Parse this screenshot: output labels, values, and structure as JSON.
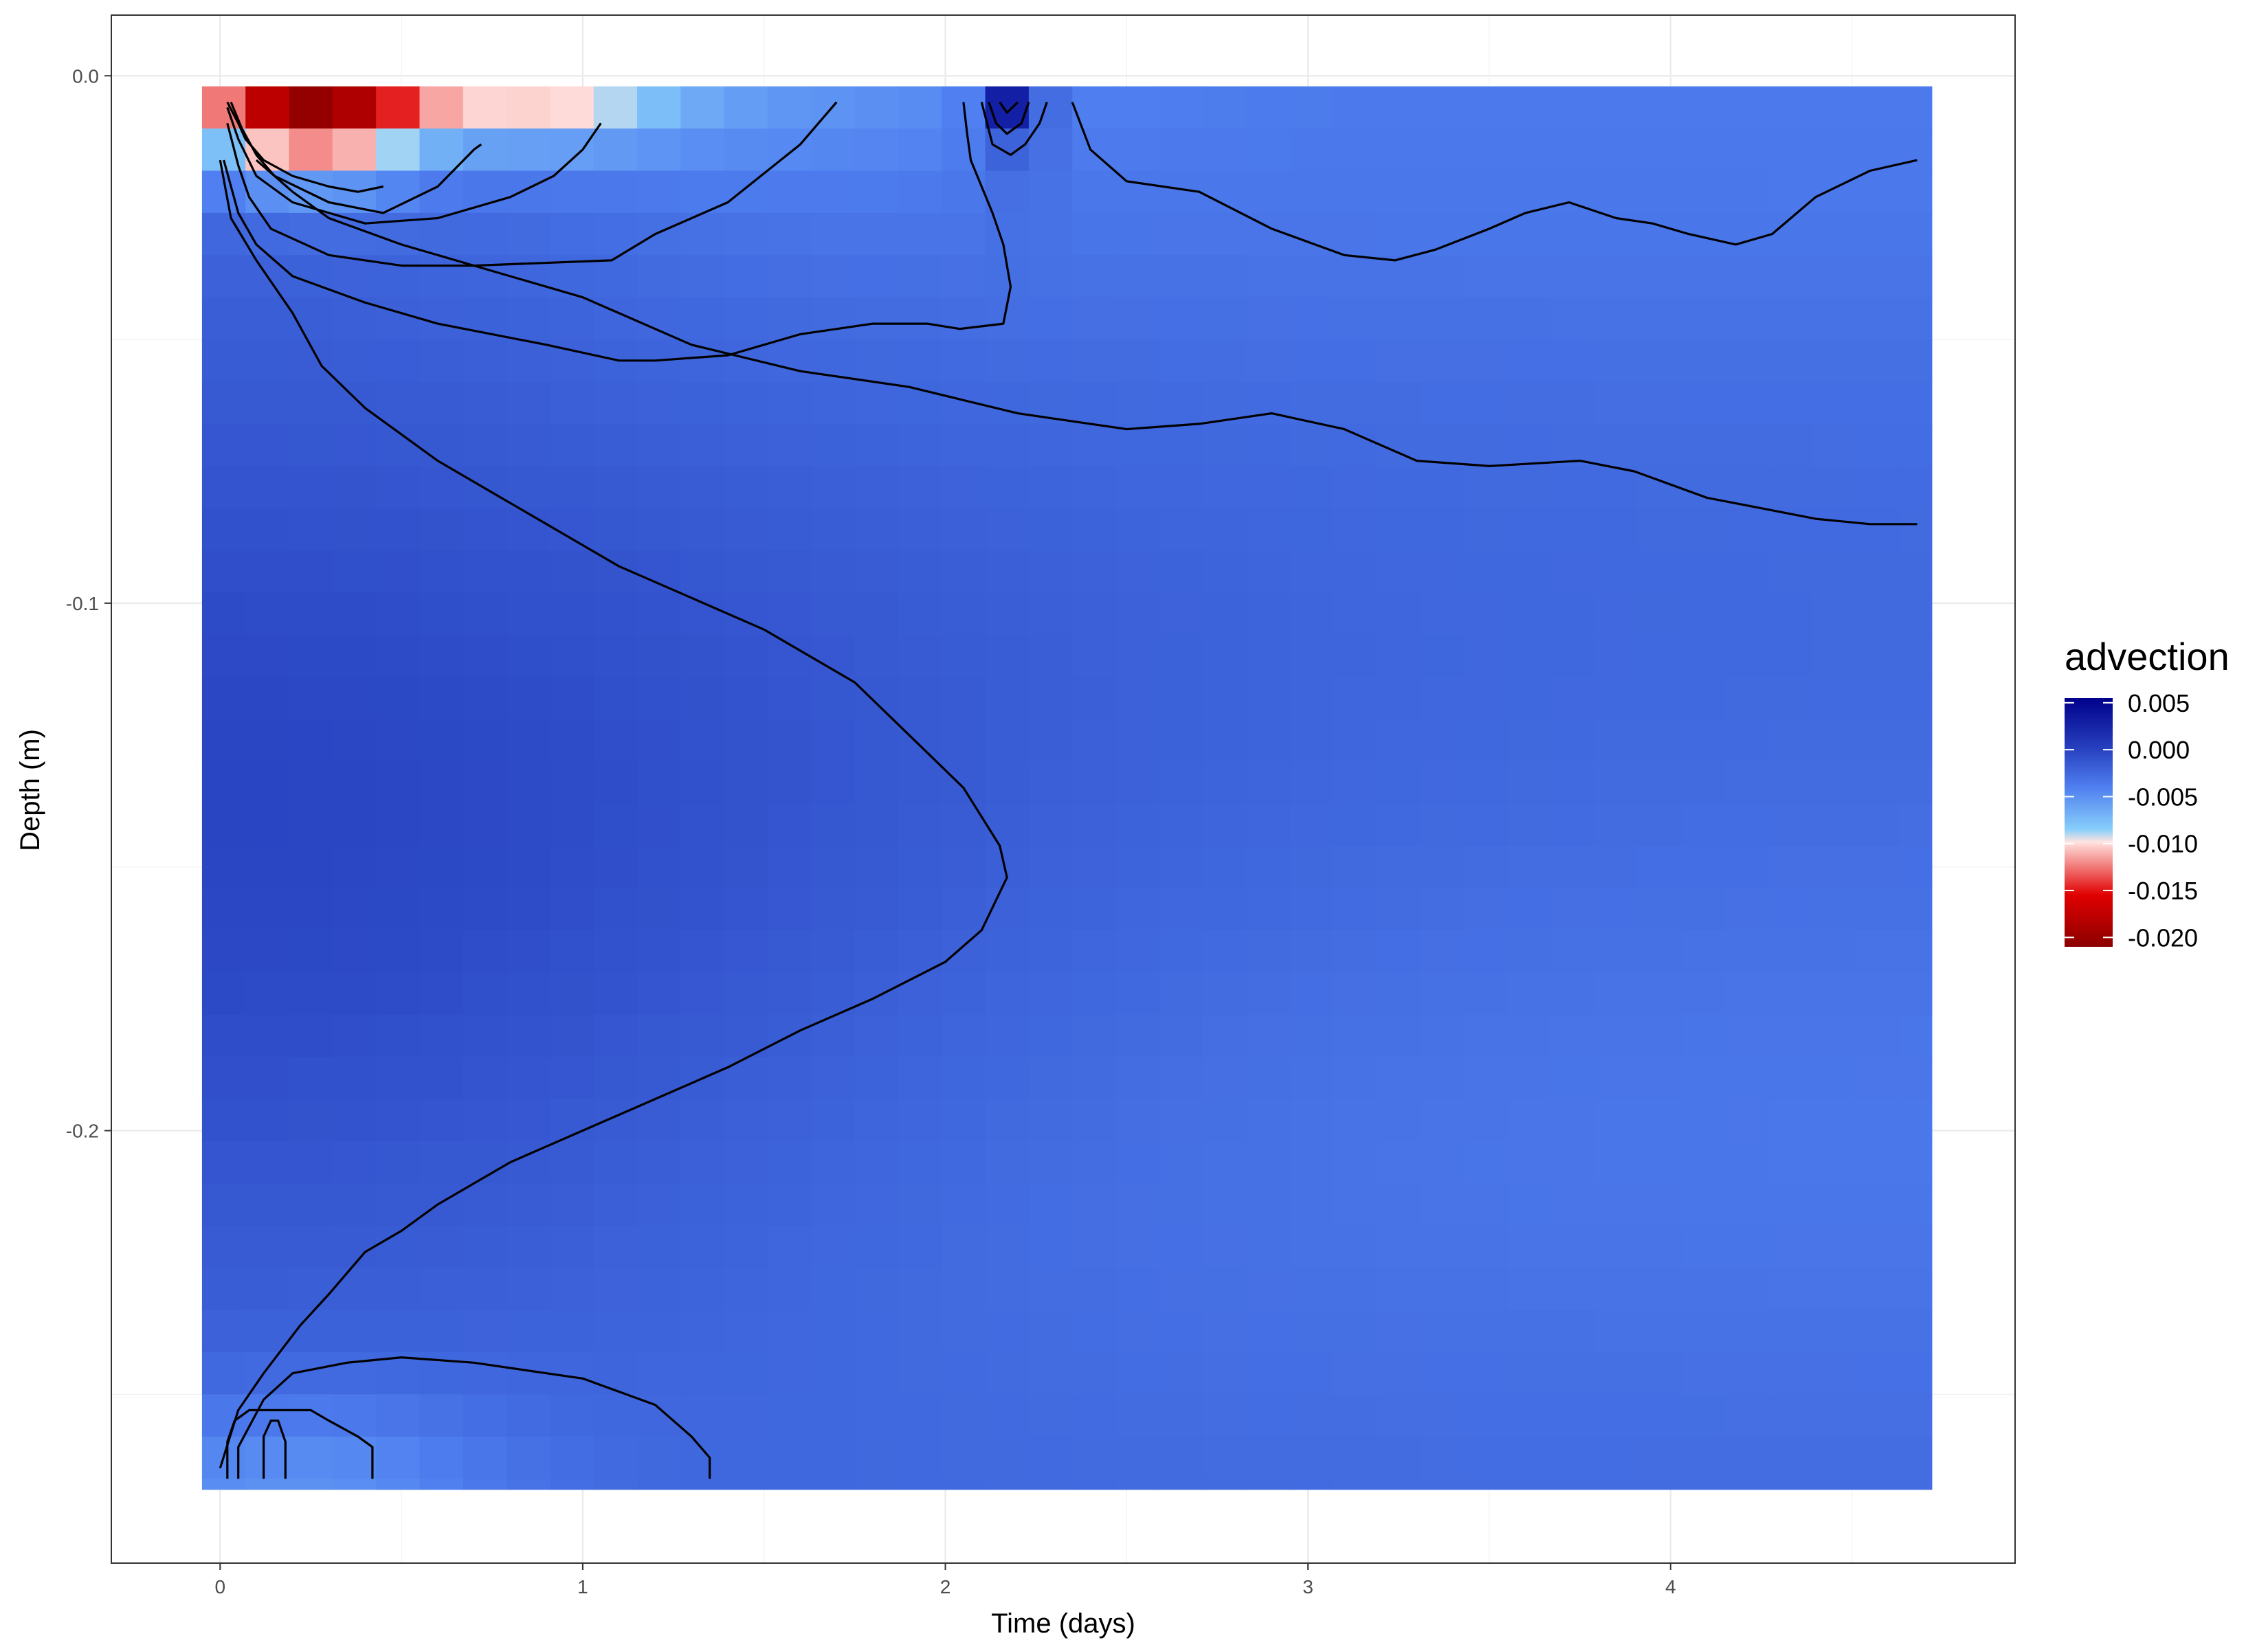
{
  "chart_data": {
    "type": "heatmap",
    "title": "",
    "xlabel": "Time (days)",
    "ylabel": "Depth (m)",
    "xlim": [
      -0.3,
      4.95
    ],
    "ylim": [
      -0.282,
      0.0115
    ],
    "x_range": [
      -0.05,
      4.72
    ],
    "y_range": [
      -0.268,
      -0.002
    ],
    "x_ticks": [
      0,
      1,
      2,
      3,
      4
    ],
    "x_tick_labels": [
      "0",
      "1",
      "2",
      "3",
      "4"
    ],
    "y_ticks": [
      0.0,
      -0.1,
      -0.2
    ],
    "y_tick_labels": [
      "0.0",
      "-0.1",
      "-0.2"
    ],
    "grid": true,
    "colorbar": {
      "title": "advection",
      "ticks": [
        0.005,
        0.0,
        -0.005,
        -0.01,
        -0.015,
        -0.02
      ],
      "tick_labels": [
        "0.005",
        "0.000",
        "-0.005",
        "-0.010",
        "-0.015",
        "-0.020"
      ],
      "range": [
        -0.021,
        0.0055
      ],
      "colors": [
        {
          "value": -0.021,
          "color": "#8b0000"
        },
        {
          "value": -0.0155,
          "color": "#e00000"
        },
        {
          "value": -0.0098,
          "color": "#ffe4e1"
        },
        {
          "value": -0.0085,
          "color": "#87cefa"
        },
        {
          "value": -0.004,
          "color": "#4f7ff0"
        },
        {
          "value": 0.0,
          "color": "#2842c0"
        },
        {
          "value": 0.0055,
          "color": "#00008b"
        }
      ],
      "placement": "right"
    },
    "contours": [
      [
        [
          0.02,
          -0.005
        ],
        [
          0.05,
          -0.009
        ],
        [
          0.07,
          -0.012
        ],
        [
          0.12,
          -0.016
        ],
        [
          0.2,
          -0.019
        ],
        [
          0.3,
          -0.021
        ],
        [
          0.38,
          -0.022
        ],
        [
          0.45,
          -0.021
        ]
      ],
      [
        [
          0.03,
          -0.005
        ],
        [
          0.06,
          -0.01
        ],
        [
          0.1,
          -0.015
        ],
        [
          0.15,
          -0.019
        ],
        [
          0.3,
          -0.024
        ],
        [
          0.45,
          -0.026
        ],
        [
          0.6,
          -0.021
        ],
        [
          0.7,
          -0.014
        ],
        [
          0.72,
          -0.013
        ]
      ],
      [
        [
          0.02,
          -0.006
        ],
        [
          0.05,
          -0.012
        ],
        [
          0.1,
          -0.019
        ],
        [
          0.2,
          -0.024
        ],
        [
          0.4,
          -0.028
        ],
        [
          0.6,
          -0.027
        ],
        [
          0.8,
          -0.023
        ],
        [
          0.92,
          -0.019
        ],
        [
          1.0,
          -0.014
        ],
        [
          1.05,
          -0.009
        ]
      ],
      [
        [
          0.02,
          -0.009
        ],
        [
          0.05,
          -0.017
        ],
        [
          0.08,
          -0.023
        ],
        [
          0.14,
          -0.029
        ],
        [
          0.3,
          -0.034
        ],
        [
          0.5,
          -0.036
        ],
        [
          0.7,
          -0.036
        ],
        [
          1.08,
          -0.035
        ],
        [
          1.2,
          -0.03
        ],
        [
          1.4,
          -0.024
        ],
        [
          1.6,
          -0.013
        ],
        [
          1.7,
          -0.005
        ]
      ],
      [
        [
          0.01,
          -0.016
        ],
        [
          0.05,
          -0.026
        ],
        [
          0.1,
          -0.032
        ],
        [
          0.2,
          -0.038
        ],
        [
          0.4,
          -0.043
        ],
        [
          0.6,
          -0.047
        ],
        [
          0.9,
          -0.051
        ],
        [
          1.1,
          -0.054
        ],
        [
          1.2,
          -0.054
        ],
        [
          1.4,
          -0.053
        ],
        [
          1.6,
          -0.049
        ],
        [
          1.8,
          -0.047
        ],
        [
          1.95,
          -0.047
        ],
        [
          2.04,
          -0.048
        ],
        [
          2.16,
          -0.047
        ],
        [
          2.18,
          -0.04
        ],
        [
          2.16,
          -0.032
        ],
        [
          2.13,
          -0.026
        ],
        [
          2.1,
          -0.021
        ],
        [
          2.07,
          -0.016
        ],
        [
          2.06,
          -0.011
        ],
        [
          2.05,
          -0.005
        ]
      ],
      [
        [
          2.15,
          -0.005
        ],
        [
          2.17,
          -0.007
        ],
        [
          2.2,
          -0.005
        ]
      ],
      [
        [
          2.12,
          -0.005
        ],
        [
          2.14,
          -0.009
        ],
        [
          2.17,
          -0.011
        ],
        [
          2.21,
          -0.009
        ],
        [
          2.23,
          -0.005
        ]
      ],
      [
        [
          2.1,
          -0.005
        ],
        [
          2.13,
          -0.013
        ],
        [
          2.18,
          -0.015
        ],
        [
          2.22,
          -0.013
        ],
        [
          2.26,
          -0.009
        ],
        [
          2.28,
          -0.005
        ]
      ],
      [
        [
          2.35,
          -0.005
        ],
        [
          2.4,
          -0.014
        ],
        [
          2.5,
          -0.02
        ],
        [
          2.7,
          -0.022
        ],
        [
          2.9,
          -0.029
        ],
        [
          3.1,
          -0.034
        ],
        [
          3.24,
          -0.035
        ],
        [
          3.35,
          -0.033
        ],
        [
          3.5,
          -0.029
        ],
        [
          3.6,
          -0.026
        ],
        [
          3.72,
          -0.024
        ],
        [
          3.85,
          -0.027
        ],
        [
          3.95,
          -0.028
        ],
        [
          4.05,
          -0.03
        ],
        [
          4.18,
          -0.032
        ],
        [
          4.28,
          -0.03
        ],
        [
          4.4,
          -0.023
        ],
        [
          4.55,
          -0.018
        ],
        [
          4.68,
          -0.016
        ]
      ],
      [
        [
          0.0,
          -0.016
        ],
        [
          0.03,
          -0.027
        ],
        [
          0.1,
          -0.035
        ],
        [
          0.2,
          -0.045
        ],
        [
          0.28,
          -0.055
        ],
        [
          0.4,
          -0.063
        ],
        [
          0.6,
          -0.073
        ],
        [
          0.8,
          -0.081
        ],
        [
          0.95,
          -0.087
        ],
        [
          1.1,
          -0.093
        ],
        [
          1.3,
          -0.099
        ],
        [
          1.5,
          -0.105
        ],
        [
          1.75,
          -0.115
        ],
        [
          1.9,
          -0.125
        ],
        [
          2.05,
          -0.135
        ],
        [
          2.15,
          -0.146
        ],
        [
          2.17,
          -0.152
        ],
        [
          2.1,
          -0.162
        ],
        [
          2.0,
          -0.168
        ],
        [
          1.8,
          -0.175
        ],
        [
          1.6,
          -0.181
        ],
        [
          1.4,
          -0.188
        ],
        [
          1.2,
          -0.194
        ],
        [
          1.0,
          -0.2
        ],
        [
          0.8,
          -0.206
        ],
        [
          0.6,
          -0.214
        ],
        [
          0.5,
          -0.219
        ],
        [
          0.4,
          -0.223
        ],
        [
          0.3,
          -0.231
        ],
        [
          0.22,
          -0.237
        ],
        [
          0.12,
          -0.246
        ],
        [
          0.05,
          -0.253
        ],
        [
          0.0,
          -0.264
        ]
      ],
      [
        [
          0.1,
          -0.016
        ],
        [
          0.2,
          -0.022
        ],
        [
          0.3,
          -0.027
        ],
        [
          0.5,
          -0.032
        ],
        [
          0.8,
          -0.038
        ],
        [
          1.0,
          -0.042
        ],
        [
          1.3,
          -0.051
        ],
        [
          1.6,
          -0.056
        ],
        [
          1.9,
          -0.059
        ],
        [
          2.2,
          -0.064
        ],
        [
          2.5,
          -0.067
        ],
        [
          2.7,
          -0.066
        ],
        [
          2.9,
          -0.064
        ],
        [
          3.1,
          -0.067
        ],
        [
          3.3,
          -0.073
        ],
        [
          3.5,
          -0.074
        ],
        [
          3.75,
          -0.073
        ],
        [
          3.9,
          -0.075
        ],
        [
          4.1,
          -0.08
        ],
        [
          4.25,
          -0.082
        ],
        [
          4.4,
          -0.084
        ],
        [
          4.55,
          -0.085
        ],
        [
          4.68,
          -0.085
        ]
      ],
      [
        [
          0.02,
          -0.266
        ],
        [
          0.02,
          -0.259
        ],
        [
          0.04,
          -0.255
        ],
        [
          0.08,
          -0.253
        ],
        [
          0.16,
          -0.253
        ],
        [
          0.25,
          -0.253
        ],
        [
          0.3,
          -0.255
        ],
        [
          0.38,
          -0.258
        ],
        [
          0.42,
          -0.26
        ],
        [
          0.42,
          -0.266
        ]
      ],
      [
        [
          0.12,
          -0.266
        ],
        [
          0.12,
          -0.258
        ],
        [
          0.14,
          -0.255
        ],
        [
          0.16,
          -0.255
        ],
        [
          0.18,
          -0.259
        ],
        [
          0.18,
          -0.266
        ]
      ],
      [
        [
          0.05,
          -0.266
        ],
        [
          0.05,
          -0.26
        ],
        [
          0.12,
          -0.251
        ],
        [
          0.2,
          -0.246
        ],
        [
          0.35,
          -0.244
        ],
        [
          0.5,
          -0.243
        ],
        [
          0.7,
          -0.244
        ],
        [
          0.9,
          -0.246
        ],
        [
          1.0,
          -0.247
        ],
        [
          1.2,
          -0.252
        ],
        [
          1.3,
          -0.258
        ],
        [
          1.35,
          -0.262
        ],
        [
          1.35,
          -0.266
        ]
      ]
    ]
  }
}
